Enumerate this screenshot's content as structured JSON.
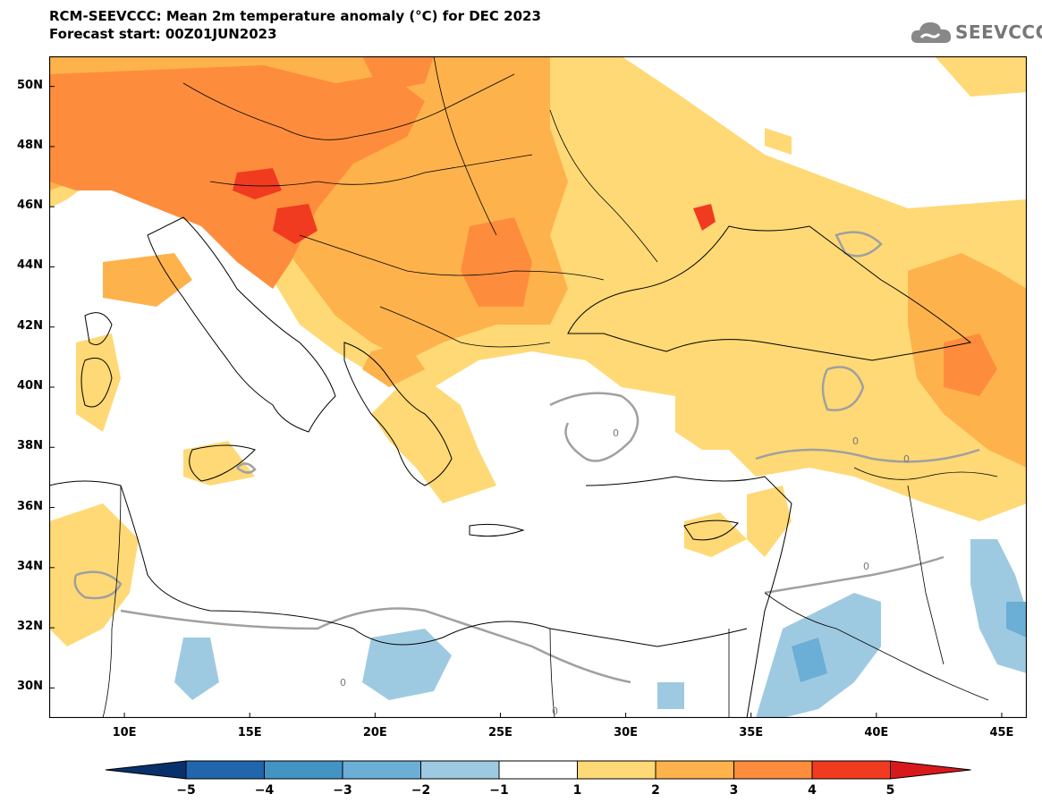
{
  "title": {
    "line1": "RCM-SEEVCCC: Mean 2m temperature anomaly (°C) for DEC 2023",
    "line2": "Forecast start: 00Z01JUN2023"
  },
  "logo": {
    "text": "SEEVCCC",
    "icon": "cloud-icon"
  },
  "map": {
    "lon_range": [
      7,
      46
    ],
    "lat_range": [
      29,
      51
    ],
    "contour_label": "0",
    "lat_ticks": [
      {
        "value": 50,
        "label": "50N"
      },
      {
        "value": 48,
        "label": "48N"
      },
      {
        "value": 46,
        "label": "46N"
      },
      {
        "value": 44,
        "label": "44N"
      },
      {
        "value": 42,
        "label": "42N"
      },
      {
        "value": 40,
        "label": "40N"
      },
      {
        "value": 38,
        "label": "38N"
      },
      {
        "value": 36,
        "label": "36N"
      },
      {
        "value": 34,
        "label": "34N"
      },
      {
        "value": 32,
        "label": "32N"
      },
      {
        "value": 30,
        "label": "30N"
      }
    ],
    "lon_ticks": [
      {
        "value": 10,
        "label": "10E"
      },
      {
        "value": 15,
        "label": "15E"
      },
      {
        "value": 20,
        "label": "20E"
      },
      {
        "value": 25,
        "label": "25E"
      },
      {
        "value": 30,
        "label": "30E"
      },
      {
        "value": 35,
        "label": "35E"
      },
      {
        "value": 40,
        "label": "40E"
      },
      {
        "value": 45,
        "label": "45E"
      }
    ]
  },
  "colorbar": {
    "levels": [
      "−5",
      "−4",
      "−3",
      "−2",
      "−1",
      "1",
      "2",
      "3",
      "4",
      "5"
    ],
    "colors": [
      "#08306b",
      "#2166ac",
      "#4393c3",
      "#6baed6",
      "#9ecae1",
      "#ffffff",
      "#fed976",
      "#feb24c",
      "#fd8d3c",
      "#f03b20",
      "#d7191c"
    ]
  },
  "colors": {
    "anom_1_2": "#fed976",
    "anom_2_3": "#feb24c",
    "anom_3_4": "#fd8d3c",
    "anom_4_5": "#f03b20",
    "anom_m1_m2": "#9ecae1",
    "anom_m2_m3": "#6baed6",
    "zero_contour": "#a0a0a0"
  }
}
